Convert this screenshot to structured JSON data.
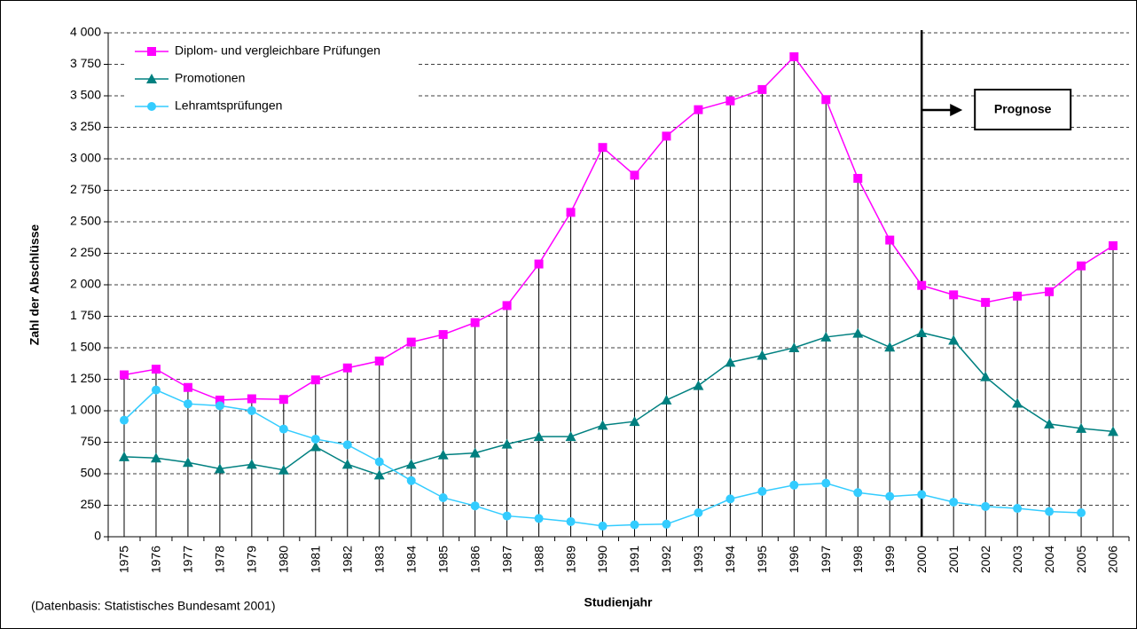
{
  "chart_data": {
    "type": "line",
    "y_label": "Zahl der Abschlüsse",
    "x_label": "Studienjahr",
    "source_note": "(Datenbasis: Statistisches Bundesamt 2001)",
    "forecast_label": "Prognose",
    "forecast_from": "2000",
    "categories": [
      "1975",
      "1976",
      "1977",
      "1978",
      "1979",
      "1980",
      "1981",
      "1982",
      "1983",
      "1984",
      "1985",
      "1986",
      "1987",
      "1988",
      "1989",
      "1990",
      "1991",
      "1992",
      "1993",
      "1994",
      "1995",
      "1996",
      "1997",
      "1998",
      "1999",
      "2000",
      "2001",
      "2002",
      "2003",
      "2004",
      "2005",
      "2006"
    ],
    "series": [
      {
        "name": "Diplom- und vergleichbare Prüfungen",
        "color": "#ff00ff",
        "marker": "square",
        "values": [
          1285,
          1330,
          1185,
          1085,
          1095,
          1090,
          1245,
          1340,
          1395,
          1545,
          1605,
          1700,
          1835,
          2165,
          2575,
          3090,
          2870,
          3180,
          3390,
          3460,
          3550,
          3810,
          3470,
          2845,
          2355,
          1995,
          1920,
          1860,
          1910,
          1945,
          2150,
          2310
        ]
      },
      {
        "name": "Promotionen",
        "color": "#008080",
        "marker": "triangle",
        "values": [
          635,
          625,
          590,
          540,
          575,
          530,
          715,
          575,
          490,
          575,
          650,
          665,
          735,
          795,
          795,
          885,
          915,
          1085,
          1200,
          1385,
          1440,
          1500,
          1585,
          1615,
          1505,
          1620,
          1560,
          1270,
          1060,
          895,
          860,
          835
        ]
      },
      {
        "name": "Lehramtsprüfungen",
        "color": "#33ccff",
        "marker": "circle",
        "values": [
          925,
          1165,
          1055,
          1040,
          1000,
          855,
          775,
          730,
          595,
          445,
          310,
          245,
          165,
          145,
          120,
          85,
          95,
          100,
          190,
          300,
          360,
          410,
          425,
          350,
          320,
          335,
          275,
          240,
          225,
          200,
          190,
          null
        ]
      }
    ],
    "ylim": [
      0,
      4000
    ],
    "yticks": [
      0,
      250,
      500,
      750,
      {
        "value": 1000,
        "label": "1 000"
      },
      {
        "value": 1250,
        "label": "1 250"
      },
      {
        "value": 1500,
        "label": "1 500"
      },
      {
        "value": 1750,
        "label": "1 750"
      },
      {
        "value": 2000,
        "label": "2 000"
      },
      {
        "value": 2250,
        "label": "2 250"
      },
      {
        "value": 2500,
        "label": "2 500"
      },
      {
        "value": 2750,
        "label": "2 750"
      },
      {
        "value": 3000,
        "label": "3 000"
      },
      {
        "value": 3250,
        "label": "3 250"
      },
      {
        "value": 3500,
        "label": "3 500"
      },
      {
        "value": 3750,
        "label": "3 750"
      },
      {
        "value": 4000,
        "label": "4 000"
      }
    ],
    "grid": true,
    "drop_lines": true,
    "legend": "top-left"
  }
}
